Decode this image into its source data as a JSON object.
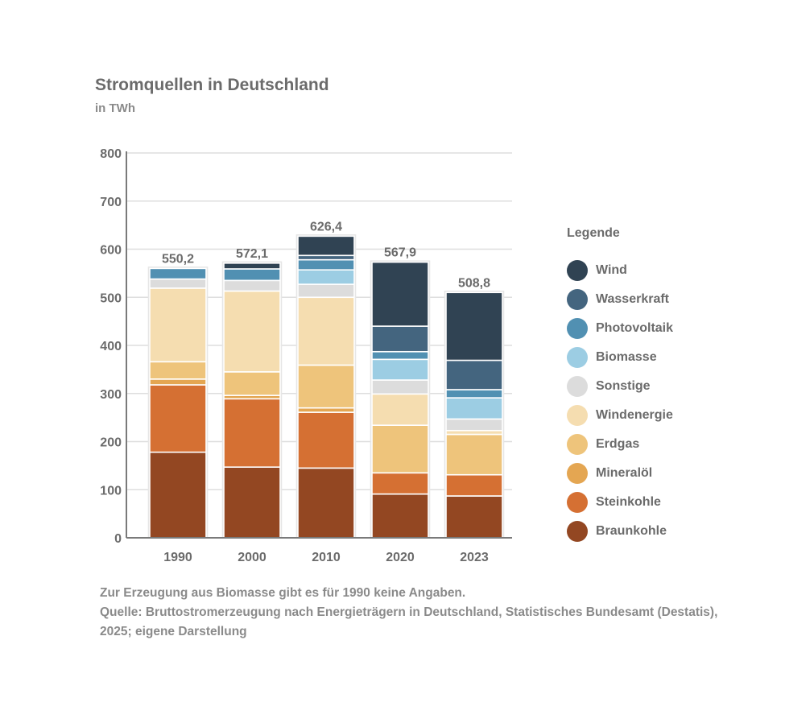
{
  "title": "Stromquellen in Deutschland",
  "subtitle": "in TWh",
  "legend_title": "Legende",
  "footnote": {
    "line1": "Zur Erzeugung aus Biomasse gibt es für 1990 keine Angaben.",
    "line2": "Quelle: Bruttostromerzeugung nach Energieträgern in Deutschland, Statistisches Bundesamt (Destatis), 2025; eigene Darstellung"
  },
  "chart_data": {
    "type": "bar",
    "stacked": true,
    "categories": [
      "1990",
      "2000",
      "2010",
      "2020",
      "2023"
    ],
    "totals_labels": [
      "550,2",
      "572,1",
      "626,4",
      "567,9",
      "508,8"
    ],
    "ylim": [
      0,
      800
    ],
    "yticks": [
      0,
      100,
      200,
      300,
      400,
      500,
      600,
      700,
      800
    ],
    "grid": true,
    "legend_position": "right",
    "series": [
      {
        "name": "Braunkohle",
        "color": "#934722",
        "values": [
          178,
          147,
          145,
          91,
          87
        ]
      },
      {
        "name": "Steinkohle",
        "color": "#d57033",
        "values": [
          140,
          142,
          116,
          44,
          44
        ]
      },
      {
        "name": "Mineralöl",
        "color": "#e4a652",
        "values": [
          12,
          7,
          9,
          0,
          0
        ]
      },
      {
        "name": "Erdgas",
        "color": "#eec47b",
        "values": [
          36,
          49,
          89,
          99,
          84
        ]
      },
      {
        "name": "Windenergie",
        "color": "#f5ddb0",
        "values": [
          153,
          168,
          141,
          65,
          8
        ]
      },
      {
        "name": "Sonstige",
        "color": "#dcdcdc",
        "values": [
          19,
          22,
          27,
          29,
          24
        ]
      },
      {
        "name": "Biomasse",
        "color": "#9ccde3",
        "values": [
          0,
          0,
          30,
          43,
          44
        ]
      },
      {
        "name": "Photovoltaik",
        "color": "#5190b2",
        "values": [
          22,
          24,
          21,
          16,
          17
        ]
      },
      {
        "name": "Wasserkraft",
        "color": "#44657f",
        "values": [
          0,
          0,
          9,
          53,
          61
        ]
      },
      {
        "name": "Wind",
        "color": "#304353",
        "values": [
          0,
          12,
          40,
          133,
          141
        ]
      }
    ]
  }
}
